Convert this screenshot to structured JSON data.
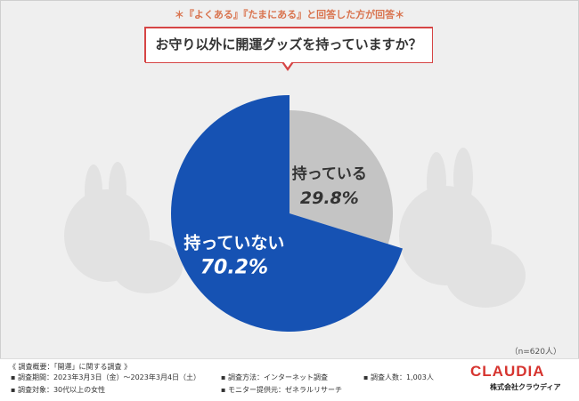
{
  "top_note": "＊『よくある』『たまにある』と回答した方が回答＊",
  "question": "お守り以外に開運グッズを持っていますか？",
  "chart_data": {
    "type": "pie",
    "slices": [
      {
        "label": "持っている",
        "value": 29.8,
        "value_text": "29.8%",
        "color": "#c4c4c4",
        "label_color": "#333333"
      },
      {
        "label": "持っていない",
        "value": 70.2,
        "value_text": "70.2%",
        "color": "#1652b3",
        "label_color": "#ffffff"
      }
    ],
    "start": "12 o'clock",
    "direction": "clockwise"
  },
  "sample_size": "（n=620人）",
  "footer": {
    "title": "《 調査概要：「開運」に関する調査 》",
    "items": [
      "▪ 調査期間：2023年3月3日（金）～2023年3月4日（土）",
      "▪ 調査方法：インターネット調査",
      "▪ 調査人数：1,003人",
      "▪ 調査対象：30代以上の女性",
      "▪ モニター提供元：ゼネラルリサーチ"
    ]
  },
  "brand": {
    "logo": "CLAUDIA",
    "company": "株式会社クラウディア"
  },
  "colors": {
    "accent_red": "#d64545",
    "note_orange": "#d9734e",
    "blue": "#1652b3",
    "gray": "#c4c4c4"
  }
}
